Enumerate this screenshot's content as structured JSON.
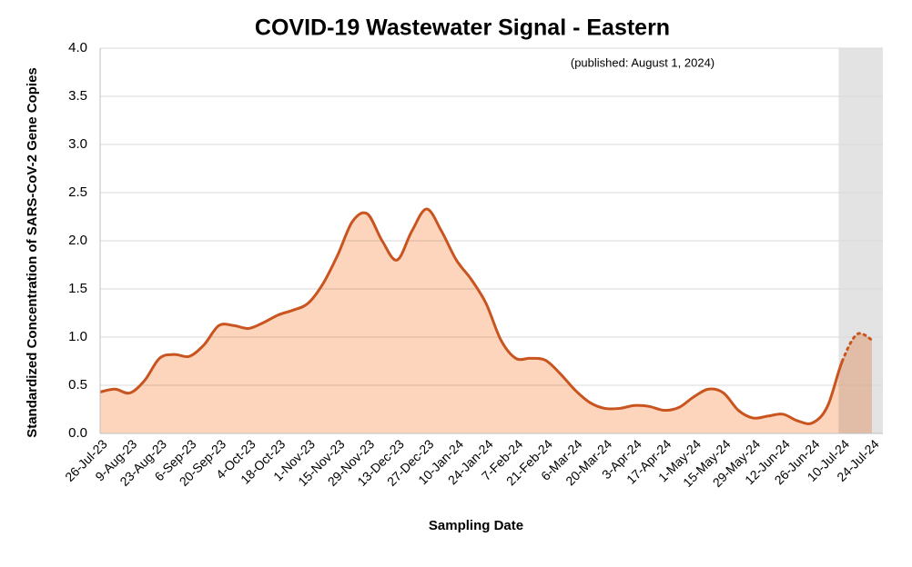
{
  "chart_data": {
    "type": "area",
    "title": "COVID-19 Wastewater Signal - Eastern",
    "annotation": "(published: August 1, 2024)",
    "x_label": "Sampling Date",
    "y_label": "Standardized Concentration of SARS-CoV-2 Gene Copies",
    "categories": [
      "26-Jul-23",
      null,
      "9-Aug-23",
      null,
      "23-Aug-23",
      null,
      "6-Sep-23",
      null,
      "20-Sep-23",
      null,
      "4-Oct-23",
      null,
      "18-Oct-23",
      null,
      "1-Nov-23",
      null,
      "15-Nov-23",
      null,
      "29-Nov-23",
      null,
      "13-Dec-23",
      null,
      "27-Dec-23",
      null,
      "10-Jan-24",
      null,
      "24-Jan-24",
      null,
      "7-Feb-24",
      null,
      "21-Feb-24",
      null,
      "6-Mar-24",
      null,
      "20-Mar-24",
      null,
      "3-Apr-24",
      null,
      "17-Apr-24",
      null,
      "1-May-24",
      null,
      "15-May-24",
      null,
      "29-May-24",
      null,
      "12-Jun-24",
      null,
      "26-Jun-24",
      null,
      "10-Jul-24",
      null,
      "24-Jul-24"
    ],
    "values": [
      0.43,
      0.46,
      0.42,
      0.55,
      0.78,
      0.82,
      0.8,
      0.92,
      1.12,
      1.12,
      1.09,
      1.15,
      1.23,
      1.28,
      1.35,
      1.55,
      1.85,
      2.2,
      2.28,
      2.0,
      1.8,
      2.1,
      2.33,
      2.1,
      1.8,
      1.6,
      1.35,
      0.97,
      0.78,
      0.78,
      0.76,
      0.62,
      0.45,
      0.32,
      0.26,
      0.26,
      0.29,
      0.28,
      0.24,
      0.27,
      0.38,
      0.46,
      0.42,
      0.24,
      0.16,
      0.18,
      0.2,
      0.13,
      0.11,
      0.28,
      0.75,
      1.03,
      0.97
    ],
    "provisional_from": "10-Jul-24",
    "color": "#c9541f",
    "fill_color": "#fdd5bc",
    "shade_color": "#e3e3e3",
    "ylim": [
      0,
      4
    ],
    "yticks": [
      {
        "value": 0,
        "label": "0.0"
      },
      {
        "value": 0.5,
        "label": "0.5"
      },
      {
        "value": 1,
        "label": "1.0"
      },
      {
        "value": 1.5,
        "label": "1.5"
      },
      {
        "value": 2,
        "label": "2.0"
      },
      {
        "value": 2.5,
        "label": "2.5"
      },
      {
        "value": 3,
        "label": "3.0"
      },
      {
        "value": 3.5,
        "label": "3.5"
      },
      {
        "value": 4,
        "label": "4.0"
      }
    ],
    "grid": true
  }
}
